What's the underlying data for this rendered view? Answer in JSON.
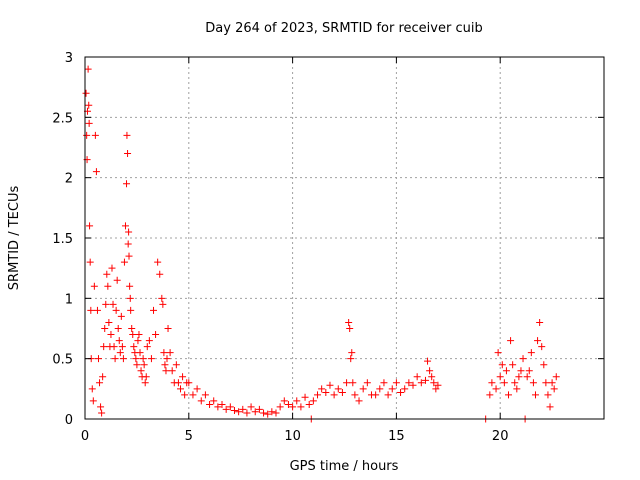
{
  "chart_data": {
    "type": "scatter",
    "title": "Day 264 of 2023, SRMTID for receiver cuib",
    "xlabel": "GPS time / hours",
    "ylabel": "SRMTID / TECUs",
    "xlim": [
      0,
      25
    ],
    "ylim": [
      0,
      3
    ],
    "x_ticks": [
      "0",
      "5",
      "10",
      "15",
      "20"
    ],
    "y_ticks": [
      "0",
      "0.5",
      "1",
      "1.5",
      "2",
      "2.5",
      "3"
    ],
    "grid": true,
    "marker": "+",
    "colors": {
      "points": "#ff0000",
      "axes": "#000000",
      "grid": "#a0a0a0"
    },
    "series": [
      {
        "name": "SRMTID",
        "x": [
          0.05,
          0.08,
          0.1,
          0.12,
          0.15,
          0.18,
          0.2,
          0.22,
          0.25,
          0.28,
          0.3,
          0.35,
          0.4,
          0.45,
          0.5,
          0.55,
          0.6,
          0.65,
          0.7,
          0.75,
          0.8,
          0.85,
          0.9,
          0.95,
          1.0,
          1.05,
          1.1,
          1.15,
          1.2,
          1.25,
          1.3,
          1.35,
          1.4,
          1.45,
          1.5,
          1.55,
          1.6,
          1.65,
          1.7,
          1.75,
          1.8,
          1.85,
          1.9,
          1.95,
          2.0,
          2.02,
          2.05,
          2.08,
          2.1,
          2.12,
          2.15,
          2.18,
          2.2,
          2.25,
          2.3,
          2.35,
          2.4,
          2.45,
          2.5,
          2.55,
          2.6,
          2.65,
          2.7,
          2.75,
          2.8,
          2.85,
          2.9,
          2.95,
          3.0,
          3.1,
          3.2,
          3.3,
          3.4,
          3.5,
          3.6,
          3.7,
          3.75,
          3.8,
          3.85,
          3.9,
          3.95,
          4.0,
          4.1,
          4.2,
          4.3,
          4.4,
          4.5,
          4.6,
          4.7,
          4.8,
          4.9,
          5.0,
          5.2,
          5.4,
          5.6,
          5.8,
          6.0,
          6.2,
          6.4,
          6.6,
          6.8,
          7.0,
          7.2,
          7.4,
          7.6,
          7.8,
          8.0,
          8.2,
          8.4,
          8.6,
          8.8,
          9.0,
          9.2,
          9.4,
          9.6,
          9.8,
          10.0,
          10.2,
          10.4,
          10.6,
          10.8,
          10.9,
          11.0,
          11.2,
          11.4,
          11.6,
          11.8,
          12.0,
          12.2,
          12.4,
          12.6,
          12.7,
          12.75,
          12.8,
          12.85,
          12.9,
          13.0,
          13.2,
          13.4,
          13.6,
          13.8,
          14.0,
          14.2,
          14.4,
          14.6,
          14.8,
          15.0,
          15.2,
          15.4,
          15.6,
          15.8,
          16.0,
          16.2,
          16.4,
          16.5,
          16.6,
          16.7,
          16.8,
          16.9,
          17.0,
          19.3,
          19.5,
          19.6,
          19.8,
          19.9,
          20.0,
          20.1,
          20.2,
          20.3,
          20.4,
          20.5,
          20.6,
          20.7,
          20.8,
          20.9,
          21.0,
          21.1,
          21.2,
          21.3,
          21.4,
          21.5,
          21.6,
          21.7,
          21.8,
          21.9,
          22.0,
          22.1,
          22.2,
          22.3,
          22.4,
          22.5,
          22.6,
          22.7
        ],
        "y": [
          2.7,
          2.35,
          2.15,
          2.55,
          2.9,
          2.6,
          2.45,
          1.6,
          1.3,
          0.9,
          0.5,
          0.25,
          0.15,
          1.1,
          2.35,
          2.05,
          0.9,
          0.5,
          0.3,
          0.1,
          0.05,
          0.35,
          0.6,
          0.75,
          0.95,
          1.2,
          1.1,
          0.8,
          0.6,
          0.7,
          1.25,
          0.95,
          0.6,
          0.5,
          0.9,
          1.15,
          0.75,
          0.65,
          0.55,
          0.85,
          0.6,
          0.5,
          1.3,
          1.6,
          1.95,
          2.35,
          2.2,
          1.45,
          1.55,
          1.35,
          1.1,
          1.0,
          0.9,
          0.75,
          0.7,
          0.6,
          0.55,
          0.5,
          0.45,
          0.65,
          0.7,
          0.55,
          0.4,
          0.35,
          0.5,
          0.45,
          0.3,
          0.35,
          0.6,
          0.65,
          0.5,
          0.9,
          0.7,
          1.3,
          1.2,
          1.0,
          0.95,
          0.55,
          0.45,
          0.4,
          0.5,
          0.75,
          0.55,
          0.4,
          0.3,
          0.45,
          0.3,
          0.25,
          0.35,
          0.2,
          0.3,
          0.3,
          0.2,
          0.25,
          0.15,
          0.2,
          0.12,
          0.15,
          0.1,
          0.12,
          0.08,
          0.1,
          0.07,
          0.06,
          0.08,
          0.05,
          0.1,
          0.06,
          0.08,
          0.05,
          0.04,
          0.06,
          0.05,
          0.1,
          0.15,
          0.12,
          0.1,
          0.15,
          0.1,
          0.18,
          0.12,
          0.0,
          0.15,
          0.2,
          0.25,
          0.22,
          0.28,
          0.2,
          0.25,
          0.22,
          0.3,
          0.8,
          0.75,
          0.5,
          0.55,
          0.3,
          0.2,
          0.15,
          0.25,
          0.3,
          0.2,
          0.2,
          0.25,
          0.3,
          0.2,
          0.25,
          0.3,
          0.22,
          0.25,
          0.3,
          0.28,
          0.35,
          0.3,
          0.32,
          0.48,
          0.4,
          0.35,
          0.3,
          0.25,
          0.28,
          0.0,
          0.2,
          0.3,
          0.25,
          0.55,
          0.35,
          0.45,
          0.3,
          0.4,
          0.2,
          0.65,
          0.45,
          0.3,
          0.25,
          0.35,
          0.4,
          0.5,
          0.0,
          0.35,
          0.4,
          0.55,
          0.3,
          0.2,
          0.65,
          0.8,
          0.6,
          0.45,
          0.3,
          0.2,
          0.1,
          0.3,
          0.25,
          0.35
        ]
      }
    ]
  }
}
